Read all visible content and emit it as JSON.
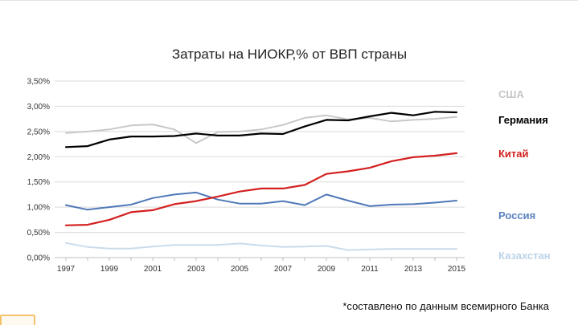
{
  "chart_data": {
    "type": "line",
    "title": "Затраты на НИОКР,%  от ВВП страны",
    "xlabel": "",
    "ylabel": "",
    "x": [
      1997,
      1998,
      1999,
      2000,
      2001,
      2002,
      2003,
      2004,
      2005,
      2006,
      2007,
      2008,
      2009,
      2010,
      2011,
      2012,
      2013,
      2014,
      2015
    ],
    "x_tick_labels": [
      "1997",
      "1999",
      "2001",
      "2003",
      "2005",
      "2007",
      "2009",
      "2011",
      "2013",
      "2015"
    ],
    "y_tick_labels": [
      "0,00%",
      "0,50%",
      "1,00%",
      "1,50%",
      "2,00%",
      "2,50%",
      "3,00%",
      "3,50%"
    ],
    "ylim": [
      0,
      3.5
    ],
    "grid": true,
    "legend_position": "right",
    "series": [
      {
        "name": "США",
        "color": "#c8c8c8",
        "values": [
          2.47,
          2.5,
          2.54,
          2.62,
          2.64,
          2.54,
          2.27,
          2.49,
          2.5,
          2.54,
          2.63,
          2.77,
          2.82,
          2.74,
          2.77,
          2.7,
          2.73,
          2.75,
          2.79
        ]
      },
      {
        "name": "Германия",
        "color": "#000000",
        "values": [
          2.19,
          2.21,
          2.34,
          2.4,
          2.4,
          2.41,
          2.46,
          2.42,
          2.42,
          2.46,
          2.45,
          2.6,
          2.73,
          2.72,
          2.8,
          2.87,
          2.82,
          2.89,
          2.88
        ]
      },
      {
        "name": "Китай",
        "color": "#d42020",
        "values": [
          0.64,
          0.65,
          0.75,
          0.9,
          0.94,
          1.06,
          1.12,
          1.21,
          1.31,
          1.37,
          1.37,
          1.44,
          1.66,
          1.71,
          1.78,
          1.91,
          1.99,
          2.02,
          2.07
        ]
      },
      {
        "name": "Россия",
        "color": "#4f78b8",
        "values": [
          1.04,
          0.95,
          1.0,
          1.05,
          1.18,
          1.25,
          1.29,
          1.15,
          1.07,
          1.07,
          1.12,
          1.04,
          1.25,
          1.13,
          1.02,
          1.05,
          1.06,
          1.09,
          1.13
        ]
      },
      {
        "name": "Казахстан",
        "color": "#c9dcec",
        "values": [
          0.29,
          0.21,
          0.18,
          0.18,
          0.22,
          0.25,
          0.25,
          0.25,
          0.28,
          0.24,
          0.21,
          0.22,
          0.23,
          0.15,
          0.16,
          0.17,
          0.17,
          0.17,
          0.17
        ]
      }
    ]
  },
  "footnote": "*составлено по данным всемирного Банка"
}
